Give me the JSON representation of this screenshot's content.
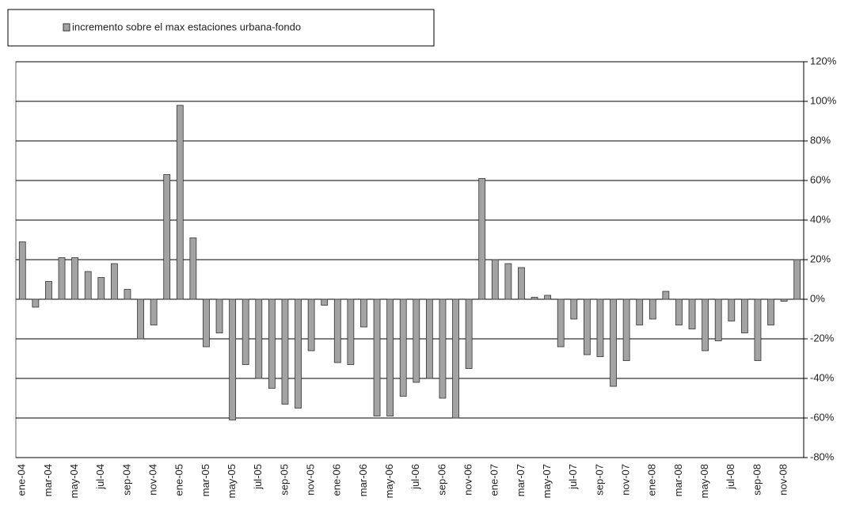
{
  "chart_data": {
    "type": "bar",
    "categories": [
      "ene-04",
      null,
      "mar-04",
      null,
      "may-04",
      null,
      "jul-04",
      null,
      "sep-04",
      null,
      "nov-04",
      null,
      "ene-05",
      null,
      "mar-05",
      null,
      "may-05",
      null,
      "jul-05",
      null,
      "sep-05",
      null,
      "nov-05",
      null,
      "ene-06",
      null,
      "mar-06",
      null,
      "may-06",
      null,
      "jul-06",
      null,
      "sep-06",
      null,
      "nov-06",
      null,
      "ene-07",
      null,
      "mar-07",
      null,
      "may-07",
      null,
      "jul-07",
      null,
      "sep-07",
      null,
      "nov-07",
      null,
      "ene-08",
      null,
      "mar-08",
      null,
      "may-08",
      null,
      "jul-08",
      null,
      "sep-08",
      null,
      "nov-08",
      null
    ],
    "series": [
      {
        "name": "incremento sobre el max estaciones urbana-fondo",
        "color": "#a3a3a3",
        "values": [
          29,
          -4,
          9,
          21,
          21,
          14,
          11,
          18,
          5,
          -20,
          -13,
          63,
          98,
          31,
          -24,
          -17,
          -61,
          -33,
          -40,
          -45,
          -53,
          -55,
          -26,
          -3,
          -32,
          -33,
          -14,
          -59,
          -59,
          -49,
          -42,
          -40,
          -50,
          -60,
          -35,
          61,
          20,
          18,
          16,
          1,
          2,
          -24,
          -10,
          -28,
          -29,
          -44,
          -31,
          -13,
          -10,
          4,
          -13,
          -15,
          -26,
          -21,
          -11,
          -17,
          -31,
          -13,
          -1,
          20
        ]
      }
    ],
    "ylim": [
      -80,
      120
    ],
    "yticks": [
      {
        "value": -80,
        "label": "-80%"
      },
      {
        "value": -60,
        "label": "-60%"
      },
      {
        "value": -40,
        "label": "-40%"
      },
      {
        "value": -20,
        "label": "-20%"
      },
      {
        "value": 0,
        "label": "0%"
      },
      {
        "value": 20,
        "label": "20%"
      },
      {
        "value": 40,
        "label": "40%"
      },
      {
        "value": 60,
        "label": "60%"
      },
      {
        "value": 80,
        "label": "80%"
      },
      {
        "value": 100,
        "label": "100%"
      },
      {
        "value": 120,
        "label": "120%"
      }
    ],
    "grid": true,
    "legend": "top-left"
  }
}
